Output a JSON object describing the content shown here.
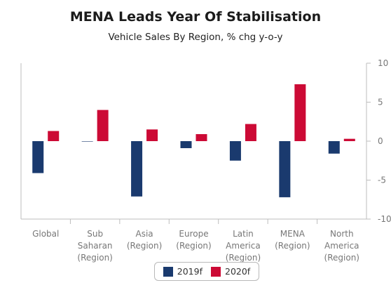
{
  "chart_data": {
    "type": "bar",
    "title": "MENA Leads Year Of Stabilisation",
    "subtitle": "Vehicle Sales By Region, % chg y-o-y",
    "categories": [
      [
        "Global"
      ],
      [
        "Sub",
        "Saharan",
        "(Region)"
      ],
      [
        "Asia",
        "(Region)"
      ],
      [
        "Europe",
        "(Region)"
      ],
      [
        "Latin",
        "America",
        "(Region)"
      ],
      [
        "MENA",
        "(Region)"
      ],
      [
        "North",
        "America",
        "(Region)"
      ]
    ],
    "series": [
      {
        "name": "2019f",
        "color": "#1a3a6e",
        "values": [
          -4.1,
          0.0,
          -7.1,
          -0.9,
          -2.5,
          -7.2,
          -1.6
        ]
      },
      {
        "name": "2020f",
        "color": "#cc0a35",
        "values": [
          1.3,
          4.0,
          1.5,
          0.9,
          2.2,
          7.3,
          0.3
        ]
      }
    ],
    "ylim": [
      -10,
      10
    ],
    "yticks": [
      10,
      5,
      0,
      -5,
      -10
    ],
    "ytick_labels": [
      "10",
      "5",
      "0",
      "-5",
      "-10"
    ],
    "yaxis_side": "right",
    "grid": false,
    "legend_position": "bottom"
  }
}
